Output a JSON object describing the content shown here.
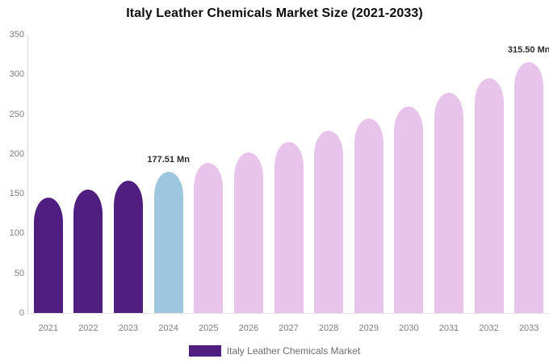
{
  "page": {
    "background": "#ffffff"
  },
  "chart_data": {
    "type": "bar",
    "title": "Italy Leather Chemicals Market Size (2021-2033)",
    "categories": [
      "2021",
      "2022",
      "2023",
      "2024",
      "2025",
      "2026",
      "2027",
      "2028",
      "2029",
      "2030",
      "2031",
      "2032",
      "2033"
    ],
    "values": [
      145.5,
      155.5,
      166.0,
      177.51,
      189.2,
      201.6,
      214.9,
      229.1,
      244.1,
      260.2,
      277.3,
      295.6,
      315.5
    ],
    "point_labels": [
      "",
      "",
      "",
      "177.51 Mn",
      "",
      "",
      "",
      "",
      "",
      "",
      "",
      "",
      "315.50 Mn"
    ],
    "bar_roles": [
      "historical",
      "historical",
      "historical",
      "current",
      "forecast",
      "forecast",
      "forecast",
      "forecast",
      "forecast",
      "forecast",
      "forecast",
      "forecast",
      "forecast"
    ],
    "colors": {
      "historical": "#4F1E7F",
      "current": "#9DC7DE",
      "forecast": "#E8C4EB"
    },
    "ylim": [
      0,
      350
    ],
    "y_ticks": [
      0,
      50,
      100,
      150,
      200,
      250,
      300,
      350
    ],
    "grid": false,
    "xlabel": "",
    "ylabel": "",
    "legend": {
      "position": "bottom",
      "label": "Italy Leather Chemicals Market",
      "swatch_color": "#4F1E7F"
    },
    "style": {
      "axis_color": "#D9D9D9",
      "baseline_color": "#E4E4E4",
      "tick_label_color": "#7E7E7E",
      "point_label_color": "#2B2B2B",
      "title_color": "#0D0D0D",
      "legend_text_color": "#6E6E6E"
    }
  }
}
